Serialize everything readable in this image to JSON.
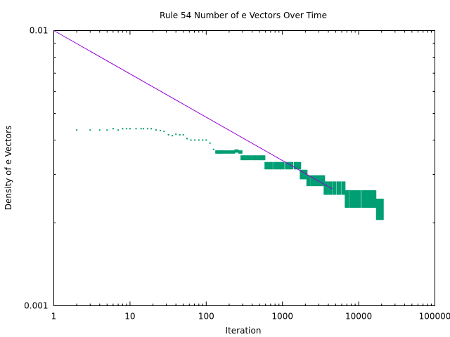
{
  "chart_data": {
    "type": "scatter",
    "title": "Rule 54 Number of e Vectors Over Time",
    "xlabel": "Iteration",
    "ylabel": "Density of e Vectors",
    "x_scale": "log",
    "y_scale": "log",
    "xlim": [
      1,
      100000
    ],
    "ylim": [
      0.001,
      0.01
    ],
    "x_ticks": [
      {
        "value": 1,
        "label": "1"
      },
      {
        "value": 10,
        "label": "10"
      },
      {
        "value": 100,
        "label": "100"
      },
      {
        "value": 1000,
        "label": "1000"
      },
      {
        "value": 10000,
        "label": "10000"
      },
      {
        "value": 100000,
        "label": "100000"
      }
    ],
    "y_ticks": [
      {
        "value": 0.001,
        "label": "0.001"
      },
      {
        "value": 0.01,
        "label": "0.01"
      }
    ],
    "y_minor_ticks": [
      0.002,
      0.003,
      0.004,
      0.005,
      0.006,
      0.007,
      0.008,
      0.009
    ],
    "grid": false,
    "legend": "none",
    "colors": {
      "line": "#9400d3",
      "points": "#009e73"
    },
    "series": [
      {
        "type": "line",
        "x": [
          1,
          4500
        ],
        "y": [
          0.01,
          0.00266
        ]
      },
      {
        "type": "scatter",
        "x": [
          2,
          3,
          4,
          5,
          6,
          7,
          8,
          9,
          10,
          12,
          14,
          15,
          17,
          19,
          22,
          25,
          28,
          32,
          36,
          40,
          45,
          50,
          56,
          63,
          71,
          80,
          90,
          100,
          112,
          125,
          140,
          150,
          160,
          180,
          200,
          225,
          250,
          280,
          300,
          330,
          370,
          420,
          470,
          520,
          560,
          620,
          700,
          800,
          900,
          1000,
          1150,
          1300,
          1500,
          1650,
          1800,
          2000,
          2200,
          2500,
          2800,
          3100,
          3400,
          3700,
          4200,
          4800,
          5500,
          6300,
          7000,
          8000,
          9000,
          10000,
          11500,
          13000,
          14500,
          16000,
          18000,
          20000
        ],
        "y": [
          0.00435,
          0.00435,
          0.00435,
          0.00435,
          0.0044,
          0.00435,
          0.0044,
          0.0044,
          0.0044,
          0.0044,
          0.0044,
          0.0044,
          0.0044,
          0.0044,
          0.00435,
          0.00433,
          0.0043,
          0.00418,
          0.00415,
          0.0042,
          0.00418,
          0.00418,
          0.00405,
          0.004,
          0.004,
          0.004,
          0.004,
          0.004,
          0.0039,
          0.0037,
          0.00362,
          0.00362,
          0.00362,
          0.00362,
          0.00362,
          0.00362,
          0.00365,
          0.00362,
          0.00345,
          0.00345,
          0.00345,
          0.00345,
          0.00345,
          0.00345,
          0.00345,
          0.00323,
          0.00323,
          0.00323,
          0.00323,
          0.00323,
          0.00323,
          0.00323,
          0.00323,
          0.00323,
          0.003,
          0.003,
          0.00285,
          0.00285,
          0.00285,
          0.00285,
          0.00285,
          0.00268,
          0.00268,
          0.00268,
          0.00268,
          0.00268,
          0.00245,
          0.00245,
          0.00245,
          0.00245,
          0.00245,
          0.00245,
          0.00245,
          0.00245,
          0.00225,
          0.00225
        ],
        "spread": [
          0,
          0,
          0,
          0,
          0,
          0,
          0,
          0,
          0,
          0,
          0,
          0,
          0,
          0,
          0,
          0,
          0,
          0,
          0,
          0,
          0,
          0,
          0,
          0,
          0,
          0,
          0,
          0,
          0,
          0,
          5e-05,
          5e-05,
          5e-05,
          5e-05,
          5e-05,
          5e-05,
          5e-05,
          5e-05,
          7e-05,
          7e-05,
          7e-05,
          7e-05,
          7e-05,
          7e-05,
          7e-05,
          0.0001,
          0.0001,
          0.0001,
          0.0001,
          0.0001,
          0.0001,
          0.0001,
          0.0001,
          0.0001,
          0.00012,
          0.00012,
          0.00013,
          0.00013,
          0.00013,
          0.00013,
          0.00013,
          0.00015,
          0.00015,
          0.00015,
          0.00015,
          0.00015,
          0.00018,
          0.00018,
          0.00018,
          0.00018,
          0.00018,
          0.00018,
          0.00018,
          0.00018,
          0.0002,
          0.0002
        ]
      }
    ]
  }
}
